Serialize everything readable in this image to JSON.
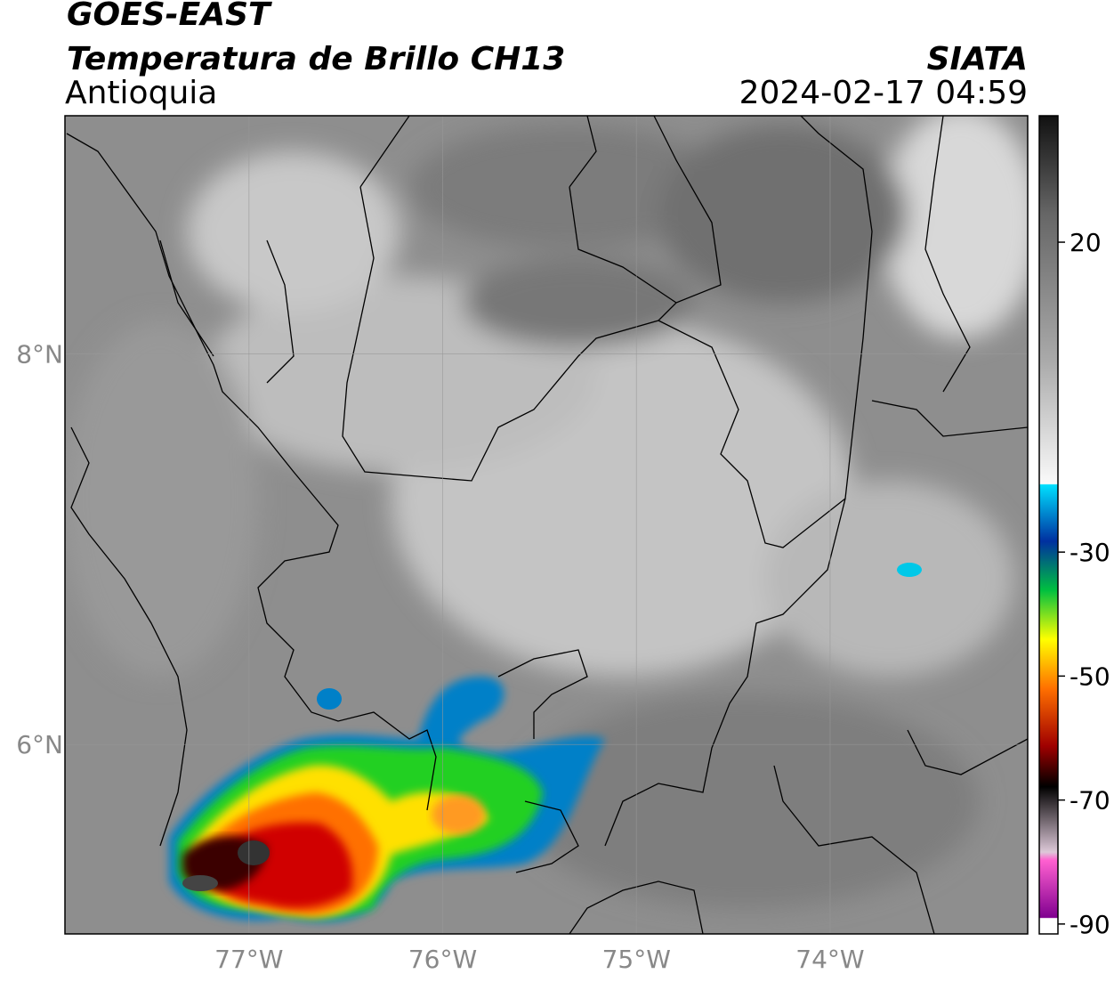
{
  "header": {
    "title": "GOES-EAST",
    "subtitle": "Temperatura de Brillo CH13",
    "region": "Antioquia",
    "brand": "SIATA",
    "datetime": "2024-02-17 04:59"
  },
  "map": {
    "xlim": [
      -77.95,
      -72.98
    ],
    "ylim": [
      5.03,
      9.22
    ],
    "xticks": [
      {
        "value": -77,
        "label": "77°W"
      },
      {
        "value": -76,
        "label": "76°W"
      },
      {
        "value": -75,
        "label": "75°W"
      },
      {
        "value": -74,
        "label": "74°W"
      }
    ],
    "yticks": [
      {
        "value": 8,
        "label": "8°N"
      },
      {
        "value": 6,
        "label": "6°N"
      }
    ]
  },
  "colorbar": {
    "lim": [
      -91.6,
      40.4
    ],
    "ticks": [
      20,
      -30,
      -50,
      -70,
      -90
    ]
  }
}
